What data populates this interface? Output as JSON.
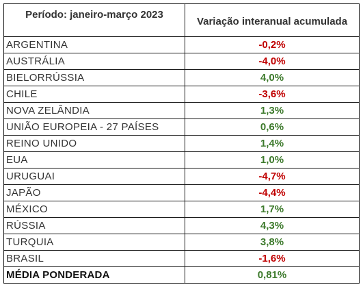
{
  "colors": {
    "negative": "#c00000",
    "positive": "#3d7a2c",
    "text": "#333333",
    "border": "#1a1a1a"
  },
  "headers": {
    "period": "Período: janeiro-março 2023",
    "variation": "Variação interanual acumulada"
  },
  "rows": [
    {
      "country": "ARGENTINA",
      "value": "-0,2%",
      "sign": "negative"
    },
    {
      "country": "AUSTRÁLIA",
      "value": "-4,0%",
      "sign": "negative"
    },
    {
      "country": "BIELORRÚSSIA",
      "value": "4,0%",
      "sign": "positive"
    },
    {
      "country": "CHILE",
      "value": "-3,6%",
      "sign": "negative"
    },
    {
      "country": "NOVA ZELÂNDIA",
      "value": "1,3%",
      "sign": "positive"
    },
    {
      "country": "UNIÃO EUROPEIA - 27 PAÍSES",
      "value": "0,6%",
      "sign": "positive"
    },
    {
      "country": "REINO UNIDO",
      "value": "1,4%",
      "sign": "positive"
    },
    {
      "country": "EUA",
      "value": "1,0%",
      "sign": "positive"
    },
    {
      "country": "URUGUAI",
      "value": "-4,7%",
      "sign": "negative"
    },
    {
      "country": "JAPÃO",
      "value": "-4,4%",
      "sign": "negative"
    },
    {
      "country": "MÉXICO",
      "value": "1,7%",
      "sign": "positive"
    },
    {
      "country": "RÚSSIA",
      "value": "4,3%",
      "sign": "positive"
    },
    {
      "country": "TURQUIA",
      "value": "3,8%",
      "sign": "positive"
    },
    {
      "country": "BRASIL",
      "value": "-1,6%",
      "sign": "negative"
    }
  ],
  "total": {
    "country": "MÉDIA PONDERADA",
    "value": "0,81%",
    "sign": "positive"
  }
}
